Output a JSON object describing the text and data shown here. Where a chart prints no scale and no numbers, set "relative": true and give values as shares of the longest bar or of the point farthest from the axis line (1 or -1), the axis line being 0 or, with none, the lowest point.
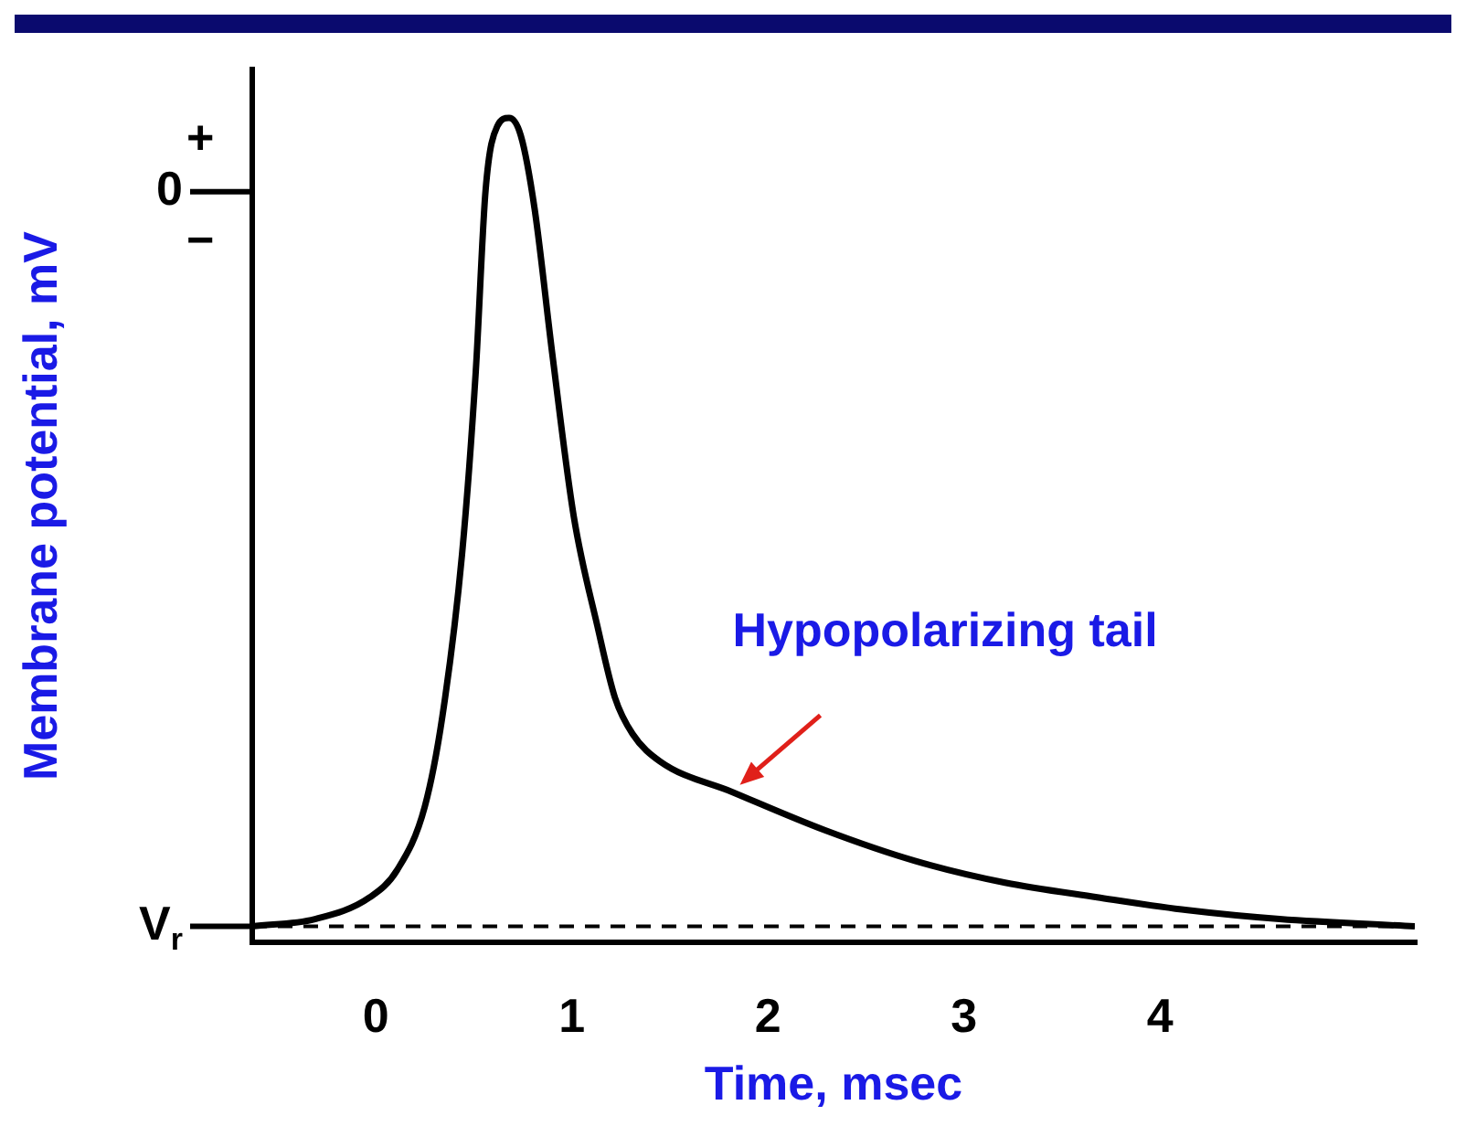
{
  "chart_data": {
    "type": "line",
    "relative": true,
    "xlabel": "Time, msec",
    "ylabel": "Membrane potential, mV",
    "xlim": [
      -0.63,
      5.3
    ],
    "xticks": [
      0,
      1,
      2,
      3,
      4
    ],
    "x": [
      -0.63,
      -0.31,
      -0.03,
      0.11,
      0.25,
      0.34,
      0.44,
      0.51,
      0.56,
      0.62,
      0.68,
      0.74,
      0.81,
      0.9,
      1.01,
      1.13,
      1.22,
      1.31,
      1.45,
      1.82,
      2.29,
      2.75,
      3.21,
      3.68,
      4.14,
      4.61,
      5.3
    ],
    "series": [
      {
        "color": "#000000",
        "values": [
          0,
          0.009,
          0.036,
          0.07,
          0.148,
          0.26,
          0.46,
          0.686,
          0.91,
          0.99,
          1,
          0.978,
          0.888,
          0.709,
          0.507,
          0.372,
          0.283,
          0.238,
          0.204,
          0.166,
          0.119,
          0.081,
          0.054,
          0.036,
          0.02,
          0.009,
          0
        ]
      }
    ],
    "ref_lines": [
      {
        "axis": "y",
        "value": 0,
        "label": "V$_{r}$",
        "line_style": "dashed",
        "color": "#000000"
      }
    ],
    "annotations": [
      {
        "text": "Hypopolarizing tail",
        "x": 1.82,
        "y": 0.166
      },
      "0",
      "+",
      "−"
    ],
    "marker": "none",
    "line_style": "solid",
    "grid": false,
    "legend": false
  }
}
